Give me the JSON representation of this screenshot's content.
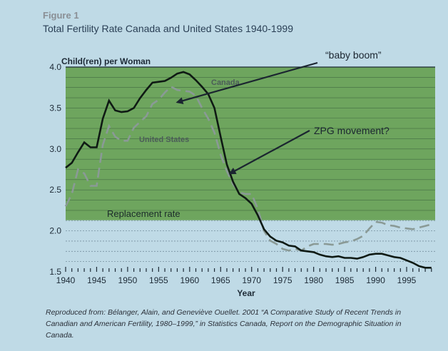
{
  "figure_label": "Figure 1",
  "caption": "Reproduced from: Bélanger, Alain, and Geneviève Ouellet. 2001 “A Comparative Study of Recent Trends in Canadian and American Fertility, 1980–1999,” in Statistics Canada, Report on the Demographic Situation in Canada.",
  "colors": {
    "background": "#bfdae6",
    "band": "#6ea55e",
    "canada": "#0f1a14",
    "us": "#8a9a96"
  },
  "chart_data": {
    "type": "line",
    "title": "Total Fertility Rate Canada and United States 1940-1999",
    "ylabel": "Child(ren) per Woman",
    "xlabel": "Year",
    "xlim": [
      1940,
      2000
    ],
    "ylim": [
      1.5,
      4.0
    ],
    "x_ticks": [
      1940,
      1945,
      1950,
      1955,
      1960,
      1965,
      1970,
      1975,
      1980,
      1985,
      1990,
      1995
    ],
    "y_ticks": [
      1.5,
      2.0,
      2.5,
      3.0,
      3.5,
      4.0
    ],
    "grid": true,
    "shaded_band": {
      "from": 2.13,
      "to": 4.0,
      "label": "Replacement rate"
    },
    "series": [
      {
        "name": "Canada",
        "style": "solid",
        "x": [
          1940,
          1941,
          1942,
          1943,
          1944,
          1945,
          1946,
          1947,
          1948,
          1949,
          1950,
          1951,
          1952,
          1953,
          1954,
          1955,
          1956,
          1957,
          1958,
          1959,
          1960,
          1961,
          1962,
          1963,
          1964,
          1965,
          1966,
          1967,
          1968,
          1969,
          1970,
          1971,
          1972,
          1973,
          1974,
          1975,
          1976,
          1977,
          1978,
          1979,
          1980,
          1981,
          1982,
          1983,
          1984,
          1985,
          1986,
          1987,
          1988,
          1989,
          1990,
          1991,
          1992,
          1993,
          1994,
          1995,
          1996,
          1997,
          1998,
          1999
        ],
        "y": [
          2.77,
          2.83,
          2.96,
          3.08,
          3.02,
          3.02,
          3.37,
          3.59,
          3.47,
          3.45,
          3.46,
          3.5,
          3.62,
          3.72,
          3.81,
          3.82,
          3.83,
          3.87,
          3.92,
          3.94,
          3.91,
          3.84,
          3.76,
          3.67,
          3.5,
          3.15,
          2.81,
          2.6,
          2.45,
          2.4,
          2.33,
          2.19,
          2.02,
          1.93,
          1.88,
          1.86,
          1.82,
          1.81,
          1.76,
          1.75,
          1.74,
          1.71,
          1.69,
          1.68,
          1.69,
          1.67,
          1.67,
          1.66,
          1.68,
          1.71,
          1.72,
          1.72,
          1.7,
          1.68,
          1.67,
          1.64,
          1.61,
          1.57,
          1.55,
          1.55
        ]
      },
      {
        "name": "United States",
        "style": "dashed",
        "x": [
          1940,
          1941,
          1942,
          1943,
          1944,
          1945,
          1946,
          1947,
          1948,
          1949,
          1950,
          1951,
          1952,
          1953,
          1954,
          1955,
          1956,
          1957,
          1958,
          1959,
          1960,
          1961,
          1962,
          1963,
          1964,
          1965,
          1966,
          1967,
          1968,
          1969,
          1970,
          1971,
          1972,
          1973,
          1974,
          1975,
          1976,
          1977,
          1978,
          1979,
          1980,
          1981,
          1982,
          1983,
          1984,
          1985,
          1986,
          1987,
          1988,
          1989,
          1990,
          1991,
          1992,
          1993,
          1994,
          1995,
          1996,
          1997,
          1998,
          1999
        ],
        "y": [
          2.3,
          2.45,
          2.75,
          2.7,
          2.55,
          2.55,
          3.05,
          3.28,
          3.15,
          3.1,
          3.1,
          3.26,
          3.33,
          3.4,
          3.55,
          3.6,
          3.69,
          3.76,
          3.72,
          3.71,
          3.7,
          3.65,
          3.5,
          3.37,
          3.2,
          2.93,
          2.73,
          2.57,
          2.47,
          2.45,
          2.45,
          2.27,
          2.0,
          1.88,
          1.84,
          1.78,
          1.76,
          1.78,
          1.76,
          1.81,
          1.84,
          1.84,
          1.84,
          1.83,
          1.84,
          1.86,
          1.87,
          1.9,
          1.94,
          2.03,
          2.11,
          2.1,
          2.07,
          2.06,
          2.04,
          2.03,
          2.02,
          2.04,
          2.06,
          2.08
        ]
      }
    ],
    "annotations": [
      {
        "text": "“baby boom”",
        "target_x": 1958,
        "target_y": 3.57
      },
      {
        "text": "ZPG movement?",
        "target_x": 1966.5,
        "target_y": 2.7
      }
    ]
  }
}
